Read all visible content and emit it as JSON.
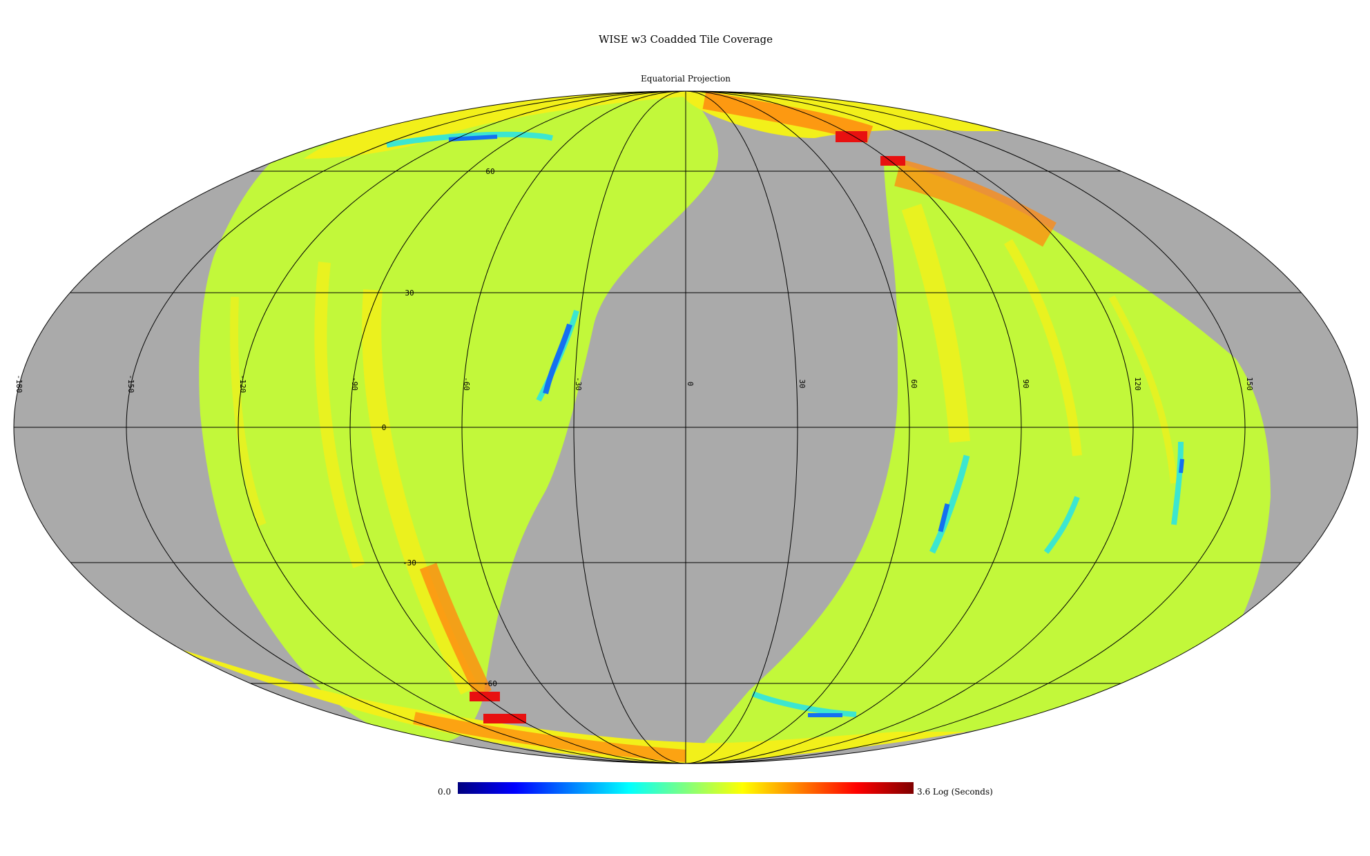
{
  "title": "WISE w3 Coadded Tile Coverage",
  "subtitle": "Equatorial Projection",
  "colorbar": {
    "min_label": "0.0",
    "max_label": "3.6 Log (Seconds)",
    "min_value": 0.0,
    "max_value": 3.6,
    "unit": "Log (Seconds)",
    "colormap": [
      "#00007f",
      "#0000ff",
      "#007fff",
      "#00ffff",
      "#7fff7f",
      "#ffff00",
      "#ff7f00",
      "#ff0000",
      "#7f0000"
    ]
  },
  "colors": {
    "background": "#ffffff",
    "no_coverage": "#aaaaaa",
    "graticule": "#000000",
    "base_coverage": "#c2f83a",
    "coverage_yellow": "#f2f01a",
    "coverage_orange": "#ff8a10",
    "coverage_red": "#e81010",
    "coverage_cyan": "#3ce6d0",
    "coverage_blue": "#1470f0"
  },
  "graticule": {
    "meridian_labels": [
      "-180",
      "-150",
      "-120",
      "-90",
      "-60",
      "-30",
      "0",
      "30",
      "60",
      "90",
      "120",
      "150"
    ],
    "parallel_labels": [
      "60",
      "30",
      "0",
      "-30",
      "-60"
    ]
  }
}
